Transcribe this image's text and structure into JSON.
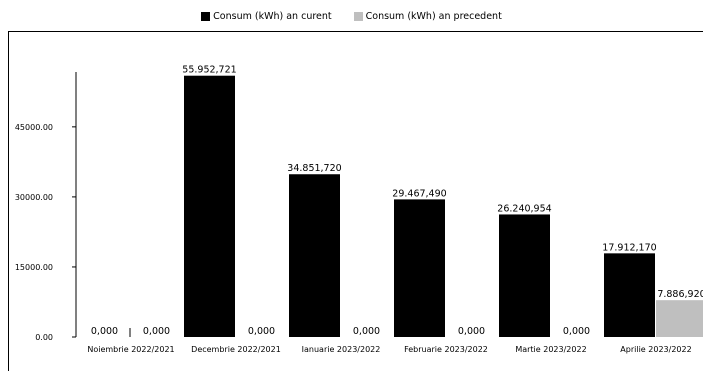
{
  "chart_data": {
    "type": "bar",
    "categories": [
      "Noiembrie 2022/2021",
      "Decembrie 2022/2021",
      "Ianuarie 2023/2022",
      "Februarie 2023/2022",
      "Martie 2023/2022",
      "Aprilie 2023/2022"
    ],
    "series": [
      {
        "name": "Consum (kWh) an curent",
        "color": "#000000",
        "values": [
          0,
          55952.721,
          34851.72,
          29467.49,
          26240.954,
          17912.17
        ],
        "labels": [
          "0,000",
          "55.952,721",
          "34.851,720",
          "29.467,490",
          "26.240,954",
          "17.912,170"
        ]
      },
      {
        "name": "Consum (kWh) an precedent",
        "color": "#bfbfbf",
        "values": [
          0,
          0,
          0,
          0,
          0,
          7886.92
        ],
        "labels": [
          "0,000",
          "0,000",
          "0,000",
          "0,000",
          "0,000",
          "7.886,920"
        ]
      }
    ],
    "yticks": [
      "0.00",
      "15000.00",
      "30000.00",
      "45000.00"
    ],
    "ytick_values": [
      0,
      15000,
      30000,
      45000
    ],
    "ylim": [
      0,
      57000
    ],
    "title": "",
    "xlabel": "",
    "ylabel": "",
    "legend_position": "top-center",
    "grid": false
  }
}
